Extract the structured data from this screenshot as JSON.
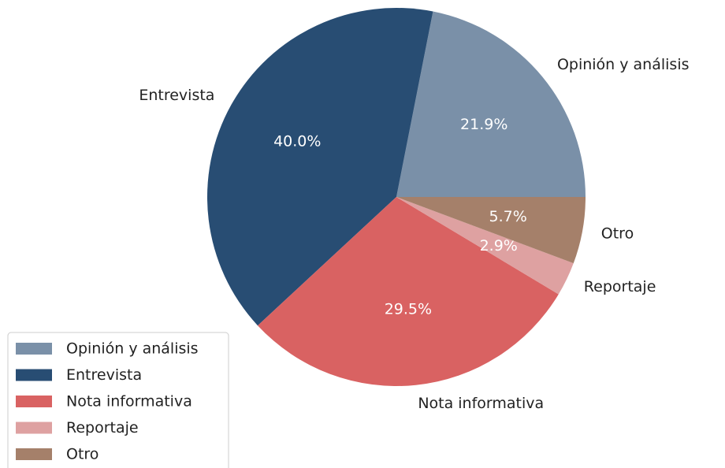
{
  "chart_data": {
    "type": "pie",
    "categories": [
      "Opinión y análisis",
      "Entrevista",
      "Nota informativa",
      "Reportaje",
      "Otro"
    ],
    "values": [
      21.9,
      40.0,
      29.5,
      2.9,
      5.7
    ],
    "value_labels": [
      "21.9%",
      "40.0%",
      "29.5%",
      "2.9%",
      "5.7%"
    ],
    "colors": [
      "#7a90a8",
      "#284d73",
      "#d96262",
      "#dea1a1",
      "#a5806a"
    ],
    "legend": "lower left"
  }
}
